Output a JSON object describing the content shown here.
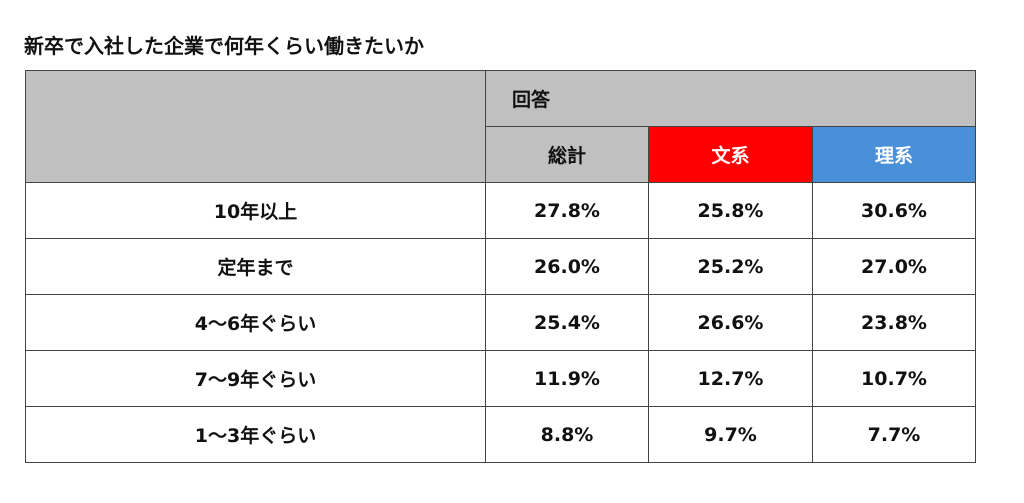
{
  "title": "新卒で入社した企業で何年くらい働きたいか",
  "colors": {
    "header_gray": "#c0c0c0",
    "total_header": "#c0c0c0",
    "bunkei_header": "#ff0000",
    "rikei_header": "#4a90d9"
  },
  "chart_data": {
    "type": "table",
    "group_header": "回答",
    "columns": [
      "総計",
      "文系",
      "理系"
    ],
    "rows": [
      {
        "label": "10年以上",
        "values": [
          "27.8%",
          "25.8%",
          "30.6%"
        ]
      },
      {
        "label": "定年まで",
        "values": [
          "26.0%",
          "25.2%",
          "27.0%"
        ]
      },
      {
        "label": "4～6年ぐらい",
        "values": [
          "25.4%",
          "26.6%",
          "23.8%"
        ]
      },
      {
        "label": "7～9年ぐらい",
        "values": [
          "11.9%",
          "12.7%",
          "10.7%"
        ]
      },
      {
        "label": "1～3年ぐらい",
        "values": [
          "8.8%",
          "9.7%",
          "7.7%"
        ]
      }
    ]
  }
}
